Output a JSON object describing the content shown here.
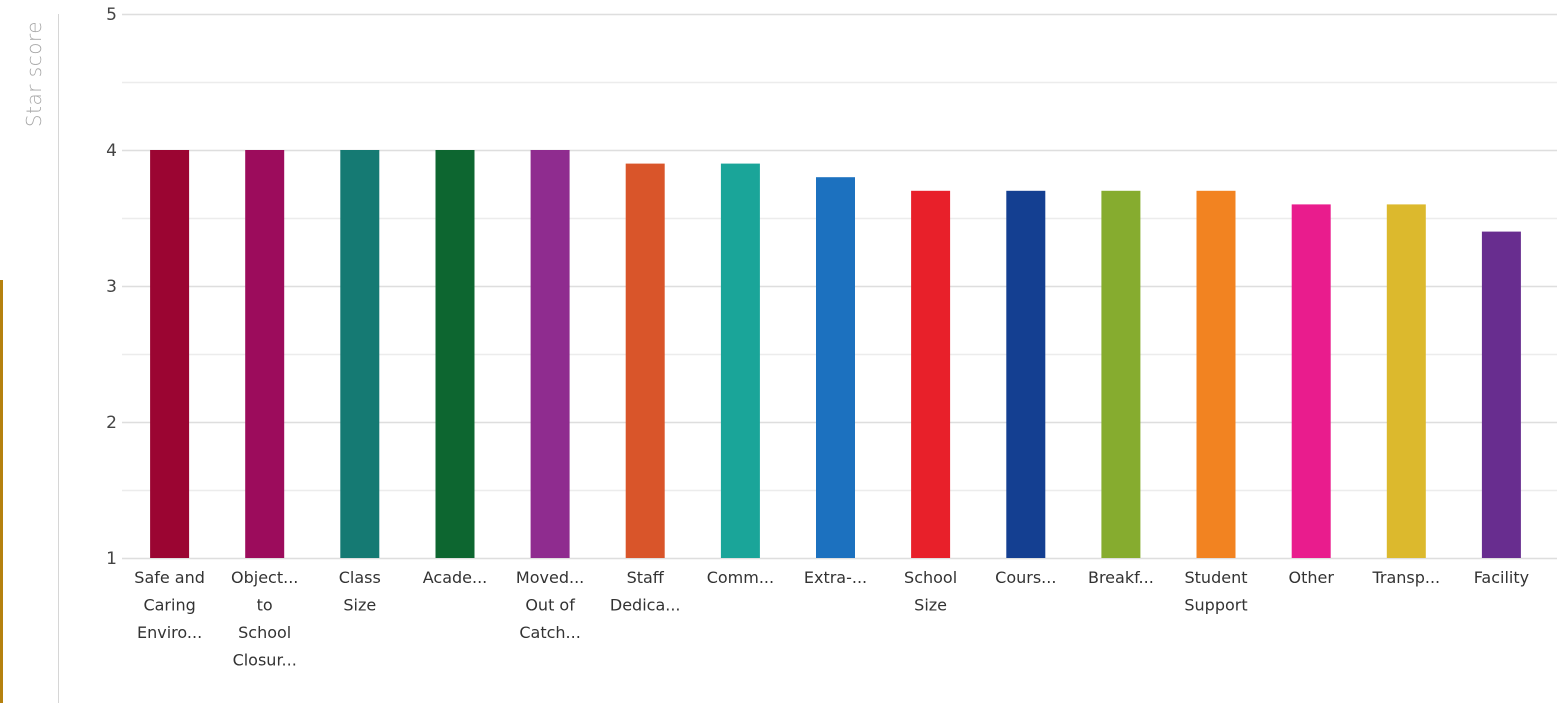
{
  "chart_data": {
    "type": "bar",
    "ylabel": "Star score",
    "xlabel": "",
    "ylim": [
      1,
      5
    ],
    "yticks": [
      1,
      2,
      3,
      4,
      5
    ],
    "grid": true,
    "categories": [
      [
        "Safe and",
        "Caring",
        "Enviro..."
      ],
      [
        "Object...",
        "to",
        "School",
        "Closur..."
      ],
      [
        "Class",
        "Size"
      ],
      [
        "Acade..."
      ],
      [
        "Moved...",
        "Out of",
        "Catch..."
      ],
      [
        "Staff",
        "Dedica..."
      ],
      [
        "Comm..."
      ],
      [
        "Extra-..."
      ],
      [
        "School",
        "Size"
      ],
      [
        "Cours..."
      ],
      [
        "Breakf..."
      ],
      [
        "Student",
        "Support"
      ],
      [
        "Other"
      ],
      [
        "Transp..."
      ],
      [
        "Facility"
      ]
    ],
    "values": [
      4.0,
      4.0,
      4.0,
      4.0,
      4.0,
      3.9,
      3.9,
      3.8,
      3.7,
      3.7,
      3.7,
      3.7,
      3.6,
      3.6,
      3.4
    ],
    "colors": [
      "#9b0532",
      "#9c0c5c",
      "#157a73",
      "#0d6630",
      "#8f2c8f",
      "#d9552a",
      "#1aa599",
      "#1c71bf",
      "#e8202a",
      "#143f91",
      "#86ac2f",
      "#f28321",
      "#e91c8d",
      "#dcb92d",
      "#682d8f"
    ]
  }
}
